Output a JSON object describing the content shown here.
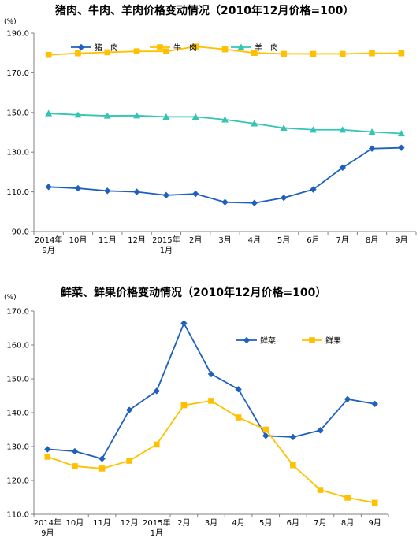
{
  "chart_data": [
    {
      "type": "line",
      "title": "猪肉、牛肉、羊肉价格变动情况（2010年12月价格=100）",
      "ylabel": "(%)",
      "ylim": [
        90,
        190
      ],
      "yticks": [
        "90.0",
        "110.0",
        "130.0",
        "150.0",
        "170.0",
        "190.0"
      ],
      "categories": [
        [
          "2014年",
          "9月"
        ],
        [
          "10月"
        ],
        [
          "11月"
        ],
        [
          "12月"
        ],
        [
          "2015年",
          "1月"
        ],
        [
          "2月"
        ],
        [
          "3月"
        ],
        [
          "4月"
        ],
        [
          "5月"
        ],
        [
          "6月"
        ],
        [
          "7月"
        ],
        [
          "8月"
        ],
        [
          "9月"
        ]
      ],
      "legend_position": "top",
      "grid": false,
      "series": [
        {
          "name": "猪　肉",
          "color": "#1f5fbf",
          "marker": "diamond",
          "values": [
            112.5,
            111.8,
            110.5,
            110.0,
            108.3,
            109.0,
            104.8,
            104.4,
            107.0,
            111.2,
            122.2,
            131.8,
            132.2
          ]
        },
        {
          "name": "牛　肉",
          "color": "#ffc000",
          "marker": "square",
          "values": [
            179.0,
            179.8,
            180.3,
            180.8,
            180.8,
            183.2,
            181.8,
            180.0,
            179.5,
            179.5,
            179.5,
            179.8,
            179.8
          ]
        },
        {
          "name": "羊　肉",
          "color": "#33c4b3",
          "marker": "triangle",
          "values": [
            149.5,
            148.8,
            148.3,
            148.4,
            147.8,
            147.8,
            146.4,
            144.4,
            142.2,
            141.3,
            141.3,
            140.2,
            139.4
          ]
        }
      ]
    },
    {
      "type": "line",
      "title": "鲜菜、鲜果价格变动情况（2010年12月价格=100）",
      "ylabel": "(%)",
      "ylim": [
        110,
        170
      ],
      "yticks": [
        "110.0",
        "120.0",
        "130.0",
        "140.0",
        "150.0",
        "160.0",
        "170.0"
      ],
      "categories": [
        [
          "2014年",
          "9月"
        ],
        [
          "10月"
        ],
        [
          "11月"
        ],
        [
          "12月"
        ],
        [
          "2015年",
          "1月"
        ],
        [
          "2月"
        ],
        [
          "3月"
        ],
        [
          "4月"
        ],
        [
          "5月"
        ],
        [
          "6月"
        ],
        [
          "7月"
        ],
        [
          "8月"
        ],
        [
          "9月"
        ]
      ],
      "legend_position": "top-right",
      "grid": false,
      "series": [
        {
          "name": "鲜菜",
          "color": "#1f5fbf",
          "marker": "diamond",
          "values": [
            129.2,
            128.6,
            126.4,
            140.8,
            146.4,
            166.4,
            151.4,
            146.9,
            133.2,
            132.8,
            134.8,
            144.0,
            142.6
          ]
        },
        {
          "name": "鲜果",
          "color": "#ffc000",
          "marker": "square",
          "values": [
            127.0,
            124.2,
            123.5,
            125.8,
            130.6,
            142.2,
            143.5,
            138.6,
            135.0,
            124.5,
            117.2,
            114.9,
            113.4
          ]
        }
      ]
    }
  ]
}
